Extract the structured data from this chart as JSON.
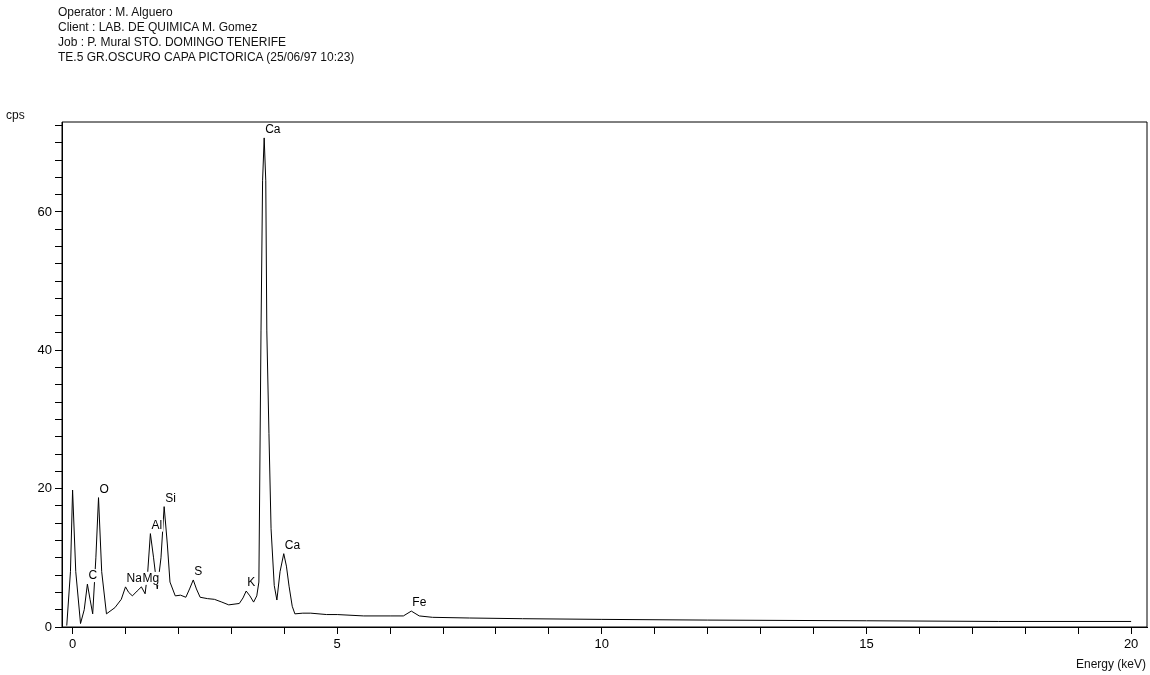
{
  "chart_data": {
    "type": "line",
    "title": "TE.5 GR.OSCURO CAPA PICTORICA (25/06/97 10:23)",
    "xlabel": "Energy (keV)",
    "ylabel": "cps",
    "annotations": [
      "Operator : M. Alguero",
      "Client : LAB. DE QUIMICA M. Gomez",
      "Job : P. Mural STO. DOMINGO TENERIFE",
      {
        "text": "C",
        "x": 0.28,
        "y": 6.2
      },
      {
        "text": "O",
        "x": 0.49,
        "y": 18.7
      },
      {
        "text": "Na",
        "x": 1.0,
        "y": 5.8
      },
      {
        "text": "Mg",
        "x": 1.3,
        "y": 5.8
      },
      {
        "text": "Al",
        "x": 1.47,
        "y": 13.5
      },
      {
        "text": "Si",
        "x": 1.73,
        "y": 17.4
      },
      {
        "text": "S",
        "x": 2.28,
        "y": 6.8
      },
      {
        "text": "K",
        "x": 3.28,
        "y": 5.2
      },
      {
        "text": "Ca",
        "x": 3.62,
        "y": 70.7
      },
      {
        "text": "Ca",
        "x": 3.99,
        "y": 10.6
      },
      {
        "text": "Fe",
        "x": 6.4,
        "y": 2.3
      }
    ],
    "series": [
      {
        "color": "#000000",
        "x": [
          -0.11,
          -0.04,
          0.0,
          0.06,
          0.15,
          0.22,
          0.28,
          0.33,
          0.38,
          0.44,
          0.49,
          0.55,
          0.64,
          0.8,
          0.92,
          1.0,
          1.06,
          1.13,
          1.22,
          1.3,
          1.37,
          1.42,
          1.47,
          1.53,
          1.6,
          1.67,
          1.73,
          1.79,
          1.84,
          1.94,
          2.04,
          2.14,
          2.21,
          2.28,
          2.34,
          2.41,
          2.55,
          2.68,
          2.82,
          2.95,
          3.15,
          3.22,
          3.28,
          3.35,
          3.42,
          3.48,
          3.52,
          3.56,
          3.59,
          3.62,
          3.65,
          3.67,
          3.71,
          3.75,
          3.81,
          3.86,
          3.92,
          3.99,
          4.04,
          4.09,
          4.15,
          4.2,
          4.35,
          4.5,
          4.8,
          5.0,
          5.5,
          6.0,
          6.25,
          6.4,
          6.55,
          6.8,
          7.5,
          8.5,
          10.0,
          12.0,
          15.0,
          17.5,
          20.0
        ],
        "values": [
          0.2,
          8.0,
          19.8,
          8.0,
          0.5,
          2.5,
          6.2,
          4.0,
          1.9,
          10.0,
          18.7,
          8.0,
          1.9,
          2.8,
          4.0,
          5.8,
          5.0,
          4.5,
          5.2,
          5.8,
          4.8,
          8.0,
          13.5,
          10.0,
          5.5,
          10.0,
          17.4,
          12.0,
          6.5,
          4.5,
          4.6,
          4.3,
          5.5,
          6.8,
          5.5,
          4.3,
          4.1,
          4.0,
          3.6,
          3.2,
          3.4,
          4.2,
          5.2,
          4.5,
          3.6,
          4.5,
          6.5,
          42.8,
          64.5,
          70.7,
          64.5,
          42.8,
          28.0,
          14.2,
          6.0,
          3.9,
          8.0,
          10.6,
          8.8,
          5.9,
          3.0,
          1.9,
          2.0,
          2.0,
          1.8,
          1.8,
          1.6,
          1.6,
          1.6,
          2.3,
          1.6,
          1.4,
          1.3,
          1.2,
          1.1,
          1.0,
          0.9,
          0.8,
          0.8
        ]
      }
    ],
    "xlim": [
      -0.2,
      20.3
    ],
    "ylim": [
      0,
      73
    ],
    "xticks": [
      0,
      {
        "value": 1,
        "label": null
      },
      {
        "value": 2,
        "label": null
      },
      {
        "value": 3,
        "label": null
      },
      {
        "value": 4,
        "label": null
      },
      5,
      {
        "value": 6,
        "label": null
      },
      {
        "value": 7,
        "label": null
      },
      {
        "value": 8,
        "label": null
      },
      {
        "value": 9,
        "label": null
      },
      10,
      {
        "value": 11,
        "label": null
      },
      {
        "value": 12,
        "label": null
      },
      {
        "value": 13,
        "label": null
      },
      {
        "value": 14,
        "label": null
      },
      15,
      {
        "value": 16,
        "label": null
      },
      {
        "value": 17,
        "label": null
      },
      {
        "value": 18,
        "label": null
      },
      {
        "value": 19,
        "label": null
      },
      20
    ],
    "yticks": [
      0,
      {
        "value": 2.5,
        "label": null
      },
      {
        "value": 5,
        "label": null
      },
      {
        "value": 7.5,
        "label": null
      },
      {
        "value": 10,
        "label": null
      },
      {
        "value": 12.5,
        "label": null
      },
      {
        "value": 15,
        "label": null
      },
      {
        "value": 17.5,
        "label": null
      },
      20,
      {
        "value": 22.5,
        "label": null
      },
      {
        "value": 25,
        "label": null
      },
      {
        "value": 27.5,
        "label": null
      },
      {
        "value": 30,
        "label": null
      },
      {
        "value": 32.5,
        "label": null
      },
      {
        "value": 35,
        "label": null
      },
      {
        "value": 37.5,
        "label": null
      },
      40,
      {
        "value": 42.5,
        "label": null
      },
      {
        "value": 45,
        "label": null
      },
      {
        "value": 47.5,
        "label": null
      },
      {
        "value": 50,
        "label": null
      },
      {
        "value": 52.5,
        "label": null
      },
      {
        "value": 55,
        "label": null
      },
      {
        "value": 57.5,
        "label": null
      },
      60,
      {
        "value": 62.5,
        "label": null
      },
      {
        "value": 65,
        "label": null
      },
      {
        "value": 67.5,
        "label": null
      },
      {
        "value": 70,
        "label": null
      },
      {
        "value": 72.5,
        "label": null
      }
    ],
    "marker": "none",
    "line_style": "solid",
    "grid": false,
    "legend": false
  }
}
